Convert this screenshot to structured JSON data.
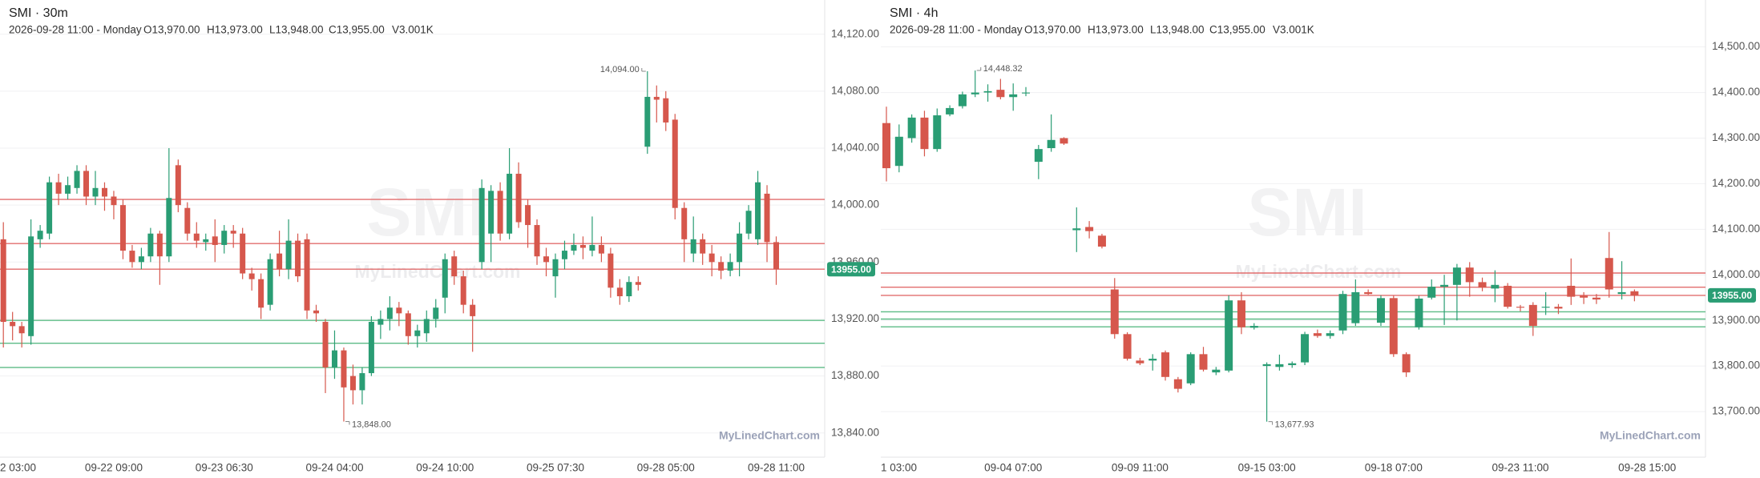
{
  "chart_data": [
    {
      "type": "candlestick",
      "title": "SMI · 30m",
      "info": [
        "2026-09-28 11:00 - Monday",
        "O13,970.00",
        "H13,973.00",
        "L13,948.00",
        "C13,955.00",
        "V3.001K"
      ],
      "watermark": "SMI",
      "watermark_url": "MyLinedChart.com",
      "brand": "MyLinedChart.com",
      "categories": [
        "2 03:00",
        null,
        null,
        null,
        null,
        null,
        null,
        null,
        null,
        null,
        null,
        null,
        "09-22 09:00",
        null,
        null,
        null,
        null,
        null,
        null,
        null,
        null,
        null,
        null,
        null,
        "09-23 06:30",
        null,
        null,
        null,
        null,
        null,
        null,
        null,
        null,
        null,
        null,
        null,
        "09-24 04:00",
        null,
        null,
        null,
        null,
        null,
        null,
        null,
        null,
        null,
        null,
        null,
        "09-24 10:00",
        null,
        null,
        null,
        null,
        null,
        null,
        null,
        null,
        null,
        null,
        null,
        "09-25 07:30",
        null,
        null,
        null,
        null,
        null,
        null,
        null,
        null,
        null,
        null,
        null,
        "09-28 05:00",
        null,
        null,
        null,
        null,
        null,
        null,
        null,
        null,
        null,
        null,
        null,
        "09-28 11:00"
      ],
      "open": [
        13976,
        13918,
        13915,
        13908,
        13976,
        13980,
        14016,
        14008,
        14012,
        14024,
        14006,
        14012,
        14006,
        14000,
        13968,
        13960,
        13964,
        13980,
        13964,
        14028,
        13998,
        13980,
        13974,
        13978,
        13972,
        13982,
        13980,
        13952,
        13948,
        13930,
        13966,
        13955,
        13975,
        13976,
        13926,
        13918,
        13886,
        13898,
        13880,
        13870,
        13882,
        13916,
        13920,
        13928,
        13924,
        13908,
        13910,
        13920,
        13935,
        13964,
        13950,
        13930,
        13960,
        13980,
        14010,
        13980,
        14022,
        14000,
        13986,
        13964,
        13950,
        13962,
        13968,
        13972,
        13968,
        13972,
        13966,
        13942,
        13936,
        13946,
        14041,
        14076,
        14075,
        14060,
        13998,
        13966,
        13976,
        13966,
        13960,
        13954,
        13960,
        13980,
        13976,
        14008,
        13974
      ],
      "high": [
        13988,
        13925,
        13918,
        13990,
        13986,
        14020,
        14022,
        14020,
        14028,
        14028,
        14024,
        14016,
        14010,
        14004,
        13972,
        13970,
        13984,
        13982,
        14040,
        14032,
        14002,
        13988,
        13980,
        13990,
        13986,
        13986,
        13984,
        13956,
        13952,
        13966,
        13982,
        13990,
        13980,
        13980,
        13930,
        13920,
        13912,
        13900,
        13888,
        13886,
        13922,
        13926,
        13936,
        13932,
        13926,
        13916,
        13926,
        13934,
        13966,
        13968,
        13954,
        13934,
        14018,
        14014,
        14016,
        14040,
        14030,
        14004,
        13990,
        13970,
        13966,
        13975,
        13980,
        13978,
        13992,
        13978,
        13970,
        13948,
        13950,
        13950,
        14094,
        14084,
        14080,
        14064,
        14002,
        13992,
        13980,
        13972,
        13964,
        13966,
        13988,
        14000,
        14024,
        14014,
        13978
      ],
      "low": [
        13900,
        13905,
        13900,
        13902,
        13970,
        13976,
        14000,
        14004,
        14008,
        14000,
        14000,
        13996,
        13990,
        13962,
        13956,
        13955,
        13960,
        13944,
        13960,
        13995,
        13975,
        13970,
        13968,
        13960,
        13966,
        13970,
        13948,
        13940,
        13920,
        13926,
        13950,
        13948,
        13946,
        13920,
        13918,
        13868,
        13878,
        13848,
        13860,
        13860,
        13880,
        13906,
        13912,
        13915,
        13902,
        13900,
        13904,
        13914,
        13924,
        13944,
        13924,
        13897,
        13955,
        13960,
        13975,
        13976,
        13984,
        13970,
        13958,
        13950,
        13935,
        13955,
        13965,
        13962,
        13964,
        13960,
        13935,
        13930,
        13932,
        13940,
        14036,
        14058,
        14052,
        13990,
        13960,
        13960,
        13958,
        13950,
        13948,
        13950,
        13950,
        13976,
        13972,
        13960,
        13944
      ],
      "close": [
        13918,
        13915,
        13910,
        13978,
        13982,
        14016,
        14008,
        14014,
        14024,
        14006,
        14012,
        14006,
        14000,
        13968,
        13960,
        13964,
        13980,
        13964,
        14005,
        14000,
        13980,
        13975,
        13976,
        13972,
        13982,
        13980,
        13952,
        13948,
        13928,
        13962,
        13955,
        13975,
        13950,
        13926,
        13924,
        13886,
        13898,
        13872,
        13870,
        13882,
        13918,
        13920,
        13928,
        13924,
        13908,
        13912,
        13920,
        13928,
        13962,
        13950,
        13930,
        13922,
        14012,
        14010,
        13980,
        14022,
        13988,
        13986,
        13964,
        13960,
        13962,
        13968,
        13972,
        13970,
        13972,
        13966,
        13942,
        13936,
        13946,
        13944,
        14076,
        14074,
        14058,
        13998,
        13976,
        13976,
        13966,
        13960,
        13954,
        13960,
        13980,
        13996,
        14016,
        13974,
        13955
      ],
      "up_color": "#2a9d74",
      "down_color": "#d6574c",
      "ylim": [
        13823,
        14144
      ],
      "yticks": [
        {
          "value": 14120,
          "label": "14,120.00"
        },
        {
          "value": 14080,
          "label": "14,080.00"
        },
        {
          "value": 14040,
          "label": "14,040.00"
        },
        {
          "value": 14000,
          "label": "14,000.00"
        },
        {
          "value": 13960,
          "label": "13,960.00"
        },
        {
          "value": 13920,
          "label": "13,920.00"
        },
        {
          "value": 13880,
          "label": "13,880.00"
        },
        {
          "value": 13840,
          "label": "13,840.00"
        }
      ],
      "grid": true,
      "levels": [
        {
          "value": 14004,
          "color": "#e26d6d"
        },
        {
          "value": 13973,
          "color": "#e26d6d"
        },
        {
          "value": 13955,
          "color": "#e26d6d"
        },
        {
          "value": 13919,
          "color": "#5dbb86"
        },
        {
          "value": 13903,
          "color": "#5dbb86"
        },
        {
          "value": 13886,
          "color": "#5dbb86"
        }
      ],
      "last_price": {
        "value": 13955,
        "label": "13955.00"
      },
      "high_label": {
        "value": 14094,
        "label": "14,094.00"
      },
      "low_label": {
        "value": 13848,
        "label": "13,848.00"
      }
    },
    {
      "type": "candlestick",
      "title": "SMI · 4h",
      "info": [
        "2026-09-28 11:00 - Monday",
        "O13,970.00",
        "H13,973.00",
        "L13,948.00",
        "C13,955.00",
        "V3.001K"
      ],
      "watermark": "SMI",
      "watermark_url": "MyLinedChart.com",
      "brand": "MyLinedChart.com",
      "categories": [
        "1 03:00",
        null,
        null,
        null,
        null,
        null,
        null,
        null,
        null,
        null,
        "09-04 07:00",
        null,
        null,
        null,
        null,
        null,
        null,
        null,
        null,
        null,
        "09-09 11:00",
        null,
        null,
        null,
        null,
        null,
        null,
        null,
        null,
        null,
        "09-15 03:00",
        null,
        null,
        null,
        null,
        null,
        null,
        null,
        null,
        null,
        "09-18 07:00",
        null,
        null,
        null,
        null,
        null,
        null,
        null,
        null,
        null,
        "09-23 11:00",
        null,
        null,
        null,
        null,
        null,
        null,
        null,
        null,
        null,
        "09-28 15:00"
      ],
      "open": [
        14333,
        14239,
        14300,
        14345,
        14276,
        14352,
        14370,
        14396,
        14400,
        14406,
        14390,
        14398,
        14248,
        14278,
        14300,
        14098,
        14105,
        14086,
        13968,
        13870,
        13812,
        13812,
        13830,
        13771,
        13762,
        13826,
        13786,
        13790,
        13944,
        13884,
        13800,
        13798,
        13802,
        13808,
        13872,
        13866,
        13878,
        13894,
        13962,
        13895,
        13949,
        13826,
        13885,
        13950,
        13974,
        13978,
        14016,
        13984,
        13970,
        13976,
        13930,
        13934,
        13928,
        13930,
        13976,
        13954,
        13950,
        14037,
        13958,
        13964,
        null
      ],
      "high": [
        14369,
        14330,
        14352,
        14360,
        14365,
        14372,
        14402,
        14448.32,
        14418,
        14430,
        14420,
        14412,
        14285,
        14352,
        14302,
        14148,
        14118,
        14090,
        13993,
        13874,
        13818,
        13826,
        13834,
        13776,
        13830,
        13842,
        13798,
        13955,
        13962,
        13894,
        13808,
        13825,
        13810,
        13875,
        13880,
        13878,
        13965,
        13990,
        13968,
        13955,
        13954,
        13830,
        13954,
        13990,
        14000,
        14024,
        14028,
        13994,
        14010,
        13982,
        13934,
        13940,
        13962,
        13936,
        14036,
        13962,
        13958,
        14094,
        14030,
        13968,
        null
      ],
      "low": [
        14205,
        14225,
        14290,
        14260,
        14270,
        14348,
        14365,
        14390,
        14380,
        14385,
        14360,
        14392,
        14210,
        14270,
        14285,
        14050,
        14080,
        14058,
        13860,
        13812,
        13802,
        13790,
        13768,
        13742,
        13758,
        13788,
        13780,
        13786,
        13870,
        13880,
        13677.93,
        13790,
        13796,
        13802,
        13862,
        13860,
        13870,
        13888,
        13956,
        13888,
        13820,
        13776,
        13880,
        13946,
        13890,
        13900,
        13952,
        13964,
        13940,
        13926,
        13920,
        13866,
        13912,
        13914,
        13934,
        13936,
        13936,
        13950,
        13946,
        13942,
        null
      ],
      "close": [
        14234,
        14303,
        14345,
        14276,
        14350,
        14366,
        14396,
        14400,
        14403,
        14390,
        14396,
        14400,
        14276,
        14296,
        14288,
        14102,
        14096,
        14062,
        13870,
        13816,
        13806,
        13816,
        13776,
        13750,
        13826,
        13792,
        13792,
        13944,
        13885,
        13888,
        13804,
        13804,
        13806,
        13870,
        13866,
        13872,
        13958,
        13962,
        13958,
        13949,
        13826,
        13786,
        13948,
        13974,
        13978,
        14016,
        13984,
        13972,
        13978,
        13930,
        13928,
        13888,
        13930,
        13926,
        13952,
        13950,
        13946,
        13968,
        13962,
        13955,
        null
      ],
      "up_color": "#2a9d74",
      "down_color": "#d6574c",
      "ylim": [
        13600,
        14603
      ],
      "yticks": [
        {
          "value": 14500,
          "label": "14,500.00"
        },
        {
          "value": 14400,
          "label": "14,400.00"
        },
        {
          "value": 14300,
          "label": "14,300.00"
        },
        {
          "value": 14200,
          "label": "14,200.00"
        },
        {
          "value": 14100,
          "label": "14,100.00"
        },
        {
          "value": 14000,
          "label": "14,000.00"
        },
        {
          "value": 13900,
          "label": "13,900.00"
        },
        {
          "value": 13800,
          "label": "13,800.00"
        },
        {
          "value": 13700,
          "label": "13,700.00"
        }
      ],
      "grid": true,
      "levels": [
        {
          "value": 14004,
          "color": "#e26d6d"
        },
        {
          "value": 13973,
          "color": "#e26d6d"
        },
        {
          "value": 13955,
          "color": "#e26d6d"
        },
        {
          "value": 13919,
          "color": "#5dbb86"
        },
        {
          "value": 13903,
          "color": "#5dbb86"
        },
        {
          "value": 13886,
          "color": "#5dbb86"
        }
      ],
      "last_price": {
        "value": 13955,
        "label": "13955.00"
      },
      "high_label": {
        "value": 14448.32,
        "label": "14,448.32"
      },
      "low_label": {
        "value": 13677.93,
        "label": "13,677.93"
      }
    }
  ]
}
